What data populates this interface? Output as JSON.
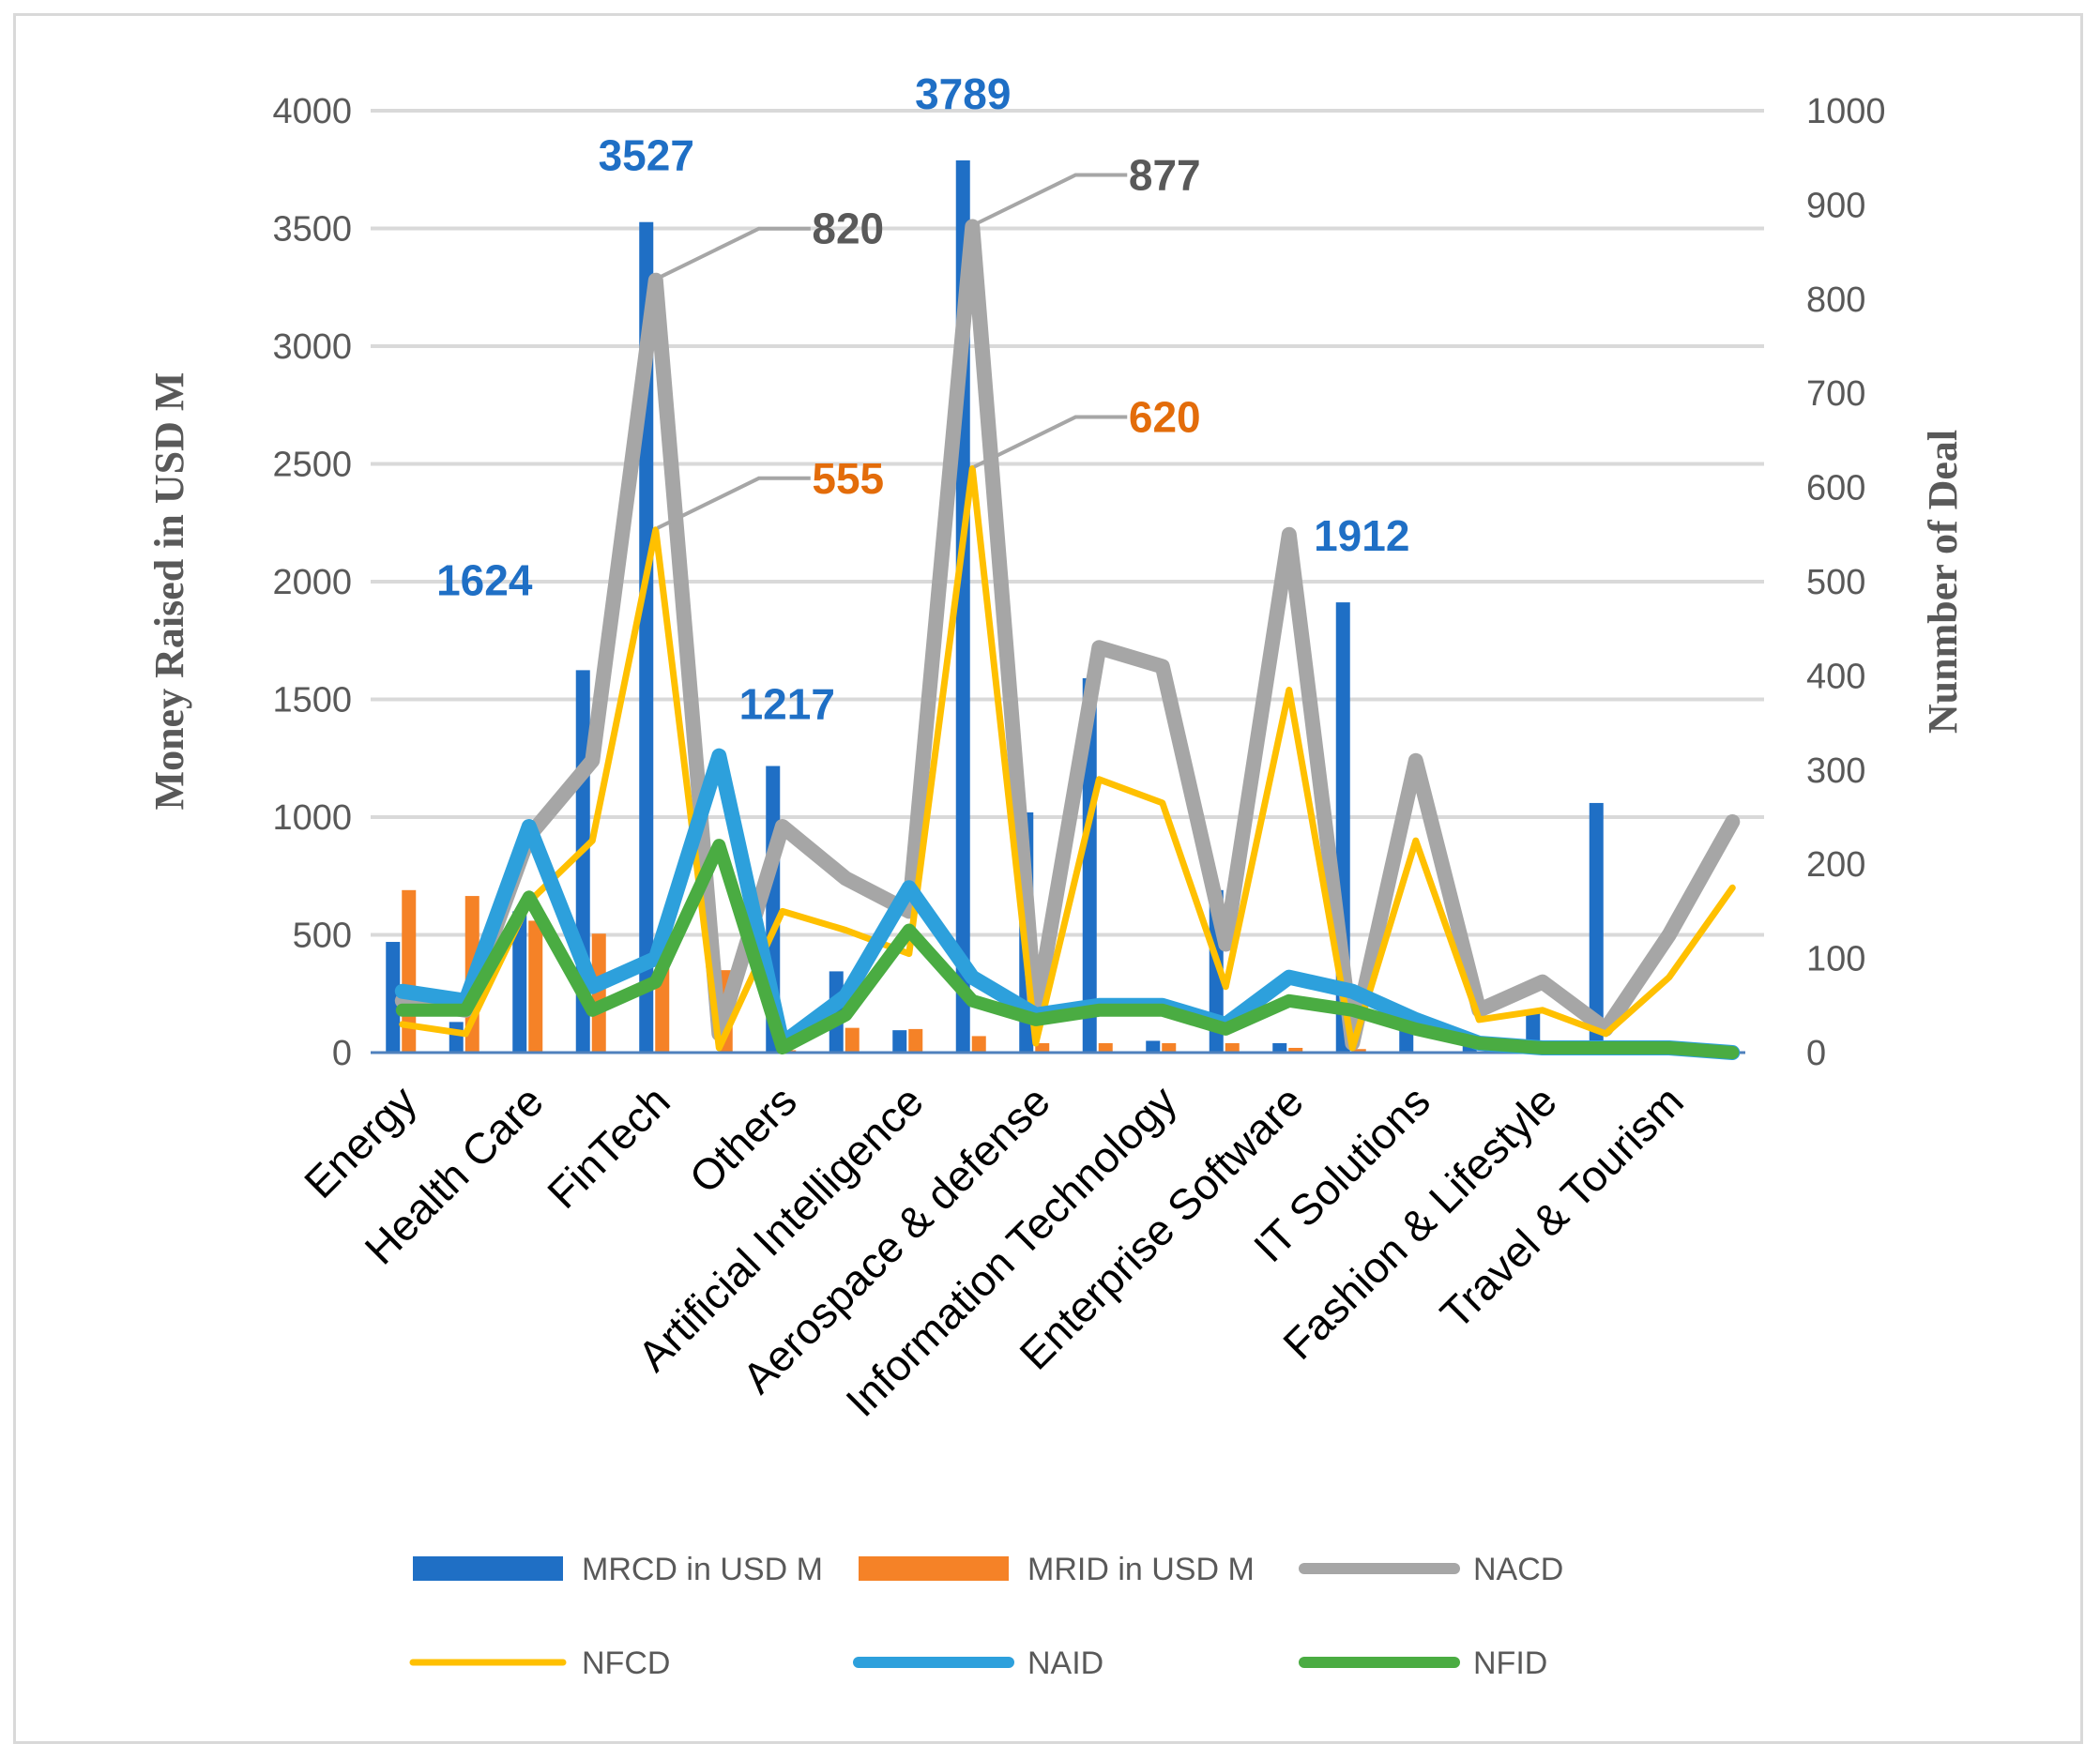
{
  "chart_data": {
    "type": "bar",
    "categories": [
      "Energy",
      "Health Care",
      "FinTech",
      "Others",
      "Artificial Intelligence",
      "Aerospace & defense",
      "Information Technology",
      "Enterprise Software",
      "IT Solutions",
      "Fashion & Lifestyle",
      "Travel & Tourism"
    ],
    "x_positions": [
      "Energy",
      "",
      "Health Care",
      "",
      "FinTech",
      "",
      "Others",
      "",
      "Artificial Intelligence",
      "",
      "Aerospace & defense",
      "",
      "Information Technology",
      "",
      "Enterprise Software",
      "",
      "IT Solutions",
      "",
      "Fashion & Lifestyle",
      "",
      "Travel & Tourism",
      ""
    ],
    "y_left": {
      "label": "Money Raised in USD M",
      "ylim": [
        0,
        4000
      ],
      "ticks": [
        "0",
        "500",
        "1000",
        "1500",
        "2000",
        "2500",
        "3000",
        "3500",
        "4000"
      ]
    },
    "y_right": {
      "label": "Nunmber of Deal",
      "ylim": [
        0,
        1000
      ],
      "ticks": [
        "0",
        "100",
        "200",
        "300",
        "400",
        "500",
        "600",
        "700",
        "800",
        "900",
        "1000"
      ]
    },
    "bar_series": [
      {
        "name": "MRCD in USD M",
        "color": "#1f6fc5",
        "axis": "left",
        "values": [
          470,
          130,
          600,
          1624,
          3527,
          0,
          1217,
          345,
          95,
          3789,
          1020,
          1590,
          50,
          690,
          40,
          1912,
          150,
          60,
          170,
          1060,
          0,
          0
        ]
      },
      {
        "name": "MRID in USD M",
        "color": "#f58227",
        "axis": "left",
        "values": [
          690,
          665,
          560,
          505,
          450,
          350,
          10,
          105,
          100,
          70,
          40,
          40,
          40,
          40,
          20,
          15,
          0,
          0,
          0,
          0,
          0,
          0
        ]
      }
    ],
    "line_series": [
      {
        "name": "NACD",
        "color": "#a6a6a6",
        "width": 16,
        "axis": "right",
        "values": [
          55,
          45,
          230,
          310,
          820,
          20,
          240,
          185,
          150,
          877,
          40,
          430,
          410,
          115,
          550,
          10,
          310,
          45,
          75,
          25,
          125,
          245
        ]
      },
      {
        "name": "NFCD",
        "color": "#ffc000",
        "width": 7,
        "axis": "right",
        "values": [
          30,
          20,
          160,
          225,
          555,
          5,
          150,
          130,
          105,
          620,
          10,
          290,
          265,
          70,
          385,
          5,
          225,
          35,
          45,
          20,
          80,
          175
        ]
      },
      {
        "name": "NAID",
        "color": "#2da0dc",
        "width": 16,
        "axis": "right",
        "values": [
          65,
          55,
          240,
          70,
          100,
          315,
          10,
          60,
          175,
          80,
          40,
          50,
          50,
          30,
          80,
          65,
          35,
          10,
          5,
          5,
          5,
          0
        ]
      },
      {
        "name": "NFID",
        "color": "#4aac42",
        "width": 14,
        "axis": "right",
        "values": [
          45,
          45,
          165,
          45,
          75,
          220,
          5,
          40,
          130,
          55,
          35,
          45,
          45,
          25,
          55,
          45,
          25,
          10,
          5,
          5,
          5,
          0
        ]
      }
    ],
    "annotations": [
      {
        "text": "1624",
        "color": "#1f6fc5",
        "series": "MRCD in USD M"
      },
      {
        "text": "3527",
        "color": "#1f6fc5",
        "series": "MRCD in USD M"
      },
      {
        "text": "1217",
        "color": "#1f6fc5",
        "series": "MRCD in USD M"
      },
      {
        "text": "3789",
        "color": "#1f6fc5",
        "series": "MRCD in USD M"
      },
      {
        "text": "1912",
        "color": "#1f6fc5",
        "series": "MRCD in USD M"
      },
      {
        "text": "820",
        "color": "#595959",
        "series": "NACD"
      },
      {
        "text": "877",
        "color": "#595959",
        "series": "NACD"
      },
      {
        "text": "555",
        "color": "#e36c0a",
        "series": "NFCD"
      },
      {
        "text": "620",
        "color": "#e36c0a",
        "series": "NFCD"
      }
    ],
    "legend": {
      "placement": "bottom",
      "entries": [
        "MRCD in USD M",
        "MRID in USD M",
        "NACD",
        "NFCD",
        "NAID",
        "NFID"
      ]
    },
    "grid": true
  }
}
